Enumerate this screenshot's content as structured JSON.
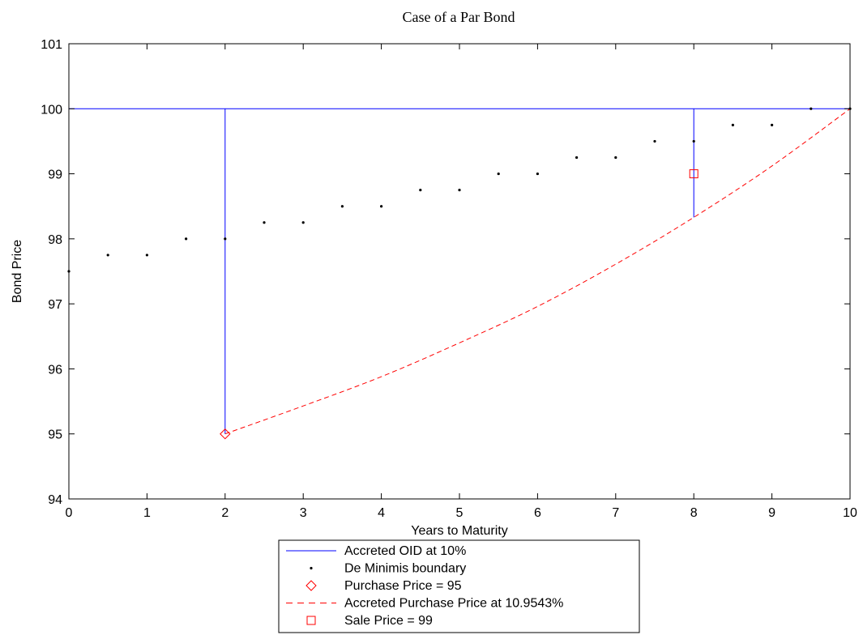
{
  "chart_data": {
    "type": "line",
    "title": "Case of a Par Bond",
    "xlabel": "Years to Maturity",
    "ylabel": "Bond Price",
    "xlim": [
      0,
      10
    ],
    "ylim": [
      94,
      101
    ],
    "xticks": [
      0,
      1,
      2,
      3,
      4,
      5,
      6,
      7,
      8,
      9,
      10
    ],
    "yticks": [
      94,
      95,
      96,
      97,
      98,
      99,
      100,
      101
    ],
    "grid": false,
    "legend_position": "below",
    "series": [
      {
        "name": "Accreted OID at 10%",
        "style": "line",
        "color": "#0000ff",
        "segments": [
          {
            "x": [
              0,
              10
            ],
            "y": [
              100,
              100
            ]
          },
          {
            "x": [
              2,
              2
            ],
            "y": [
              95,
              100
            ]
          },
          {
            "x": [
              8,
              8
            ],
            "y": [
              98.33,
              100
            ]
          }
        ]
      },
      {
        "name": "De Minimis boundary",
        "style": "dots",
        "color": "#000000",
        "x": [
          0,
          0.5,
          1,
          1.5,
          2,
          2.5,
          3,
          3.5,
          4,
          4.5,
          5,
          5.5,
          6,
          6.5,
          7,
          7.5,
          8,
          8.5,
          9,
          9.5,
          10
        ],
        "y": [
          97.5,
          97.75,
          97.75,
          98,
          98,
          98.25,
          98.25,
          98.5,
          98.5,
          98.75,
          98.75,
          99,
          99,
          99.25,
          99.25,
          99.5,
          99.5,
          99.75,
          99.75,
          100,
          100
        ]
      },
      {
        "name": "Purchase Price = 95",
        "style": "diamond",
        "color": "#ff0000",
        "x": [
          2
        ],
        "y": [
          95
        ]
      },
      {
        "name": "Accreted Purchase Price at 10.9543%",
        "style": "dashed",
        "color": "#ff0000",
        "x": [
          2,
          3,
          4,
          5,
          6,
          7,
          8,
          9,
          10
        ],
        "y": [
          95,
          95.43,
          95.88,
          96.4,
          96.96,
          97.61,
          98.33,
          99.12,
          100
        ]
      },
      {
        "name": "Sale Price = 99",
        "style": "square",
        "color": "#ff0000",
        "x": [
          8
        ],
        "y": [
          99
        ]
      }
    ]
  }
}
